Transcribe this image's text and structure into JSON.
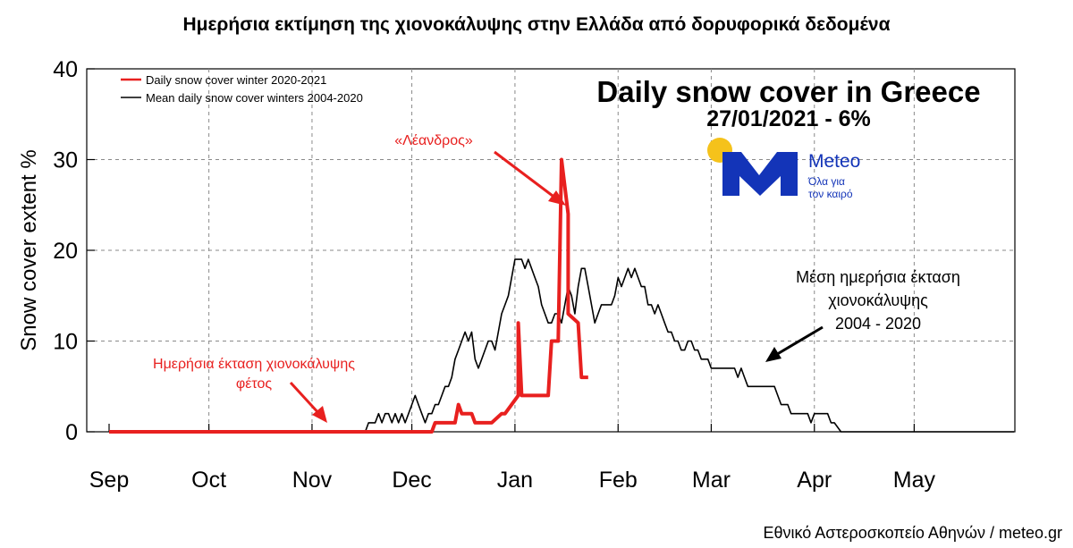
{
  "page_title": "Ημερήσια εκτίμηση της χιονοκάλυψης στην Ελλάδα από δορυφορικά δεδομένα",
  "credit": "Εθνικό Αστεροσκοπείο Αθηνών / meteo.gr",
  "colors": {
    "current": "#e8201f",
    "mean": "#000000",
    "logo_blue": "#1334b8",
    "logo_sun": "#f5c21b"
  },
  "logo": {
    "name": "Meteo",
    "tagline_1": "Όλα για",
    "tagline_2": "τον καιρό"
  },
  "annotations": {
    "storm": "«Λέανδρος»",
    "current_1": "Ημερήσια έκταση χιονοκάλυψης",
    "current_2": "φέτος",
    "mean_1": "Μέση ημερήσια έκταση",
    "mean_2": "χιονοκάλυψης",
    "mean_3": "2004 - 2020"
  },
  "chart_data": {
    "type": "line",
    "title": "Daily snow cover in Greece",
    "subtitle": "27/01/2021 - 6%",
    "ylabel": "Snow cover extent %",
    "xlabel": "",
    "x_unit": "days since 1 Sep",
    "xlim": [
      0,
      272
    ],
    "ylim": [
      0,
      40
    ],
    "x_ticks": [
      {
        "label": "Sep",
        "x": 0
      },
      {
        "label": "Oct",
        "x": 30
      },
      {
        "label": "Nov",
        "x": 61
      },
      {
        "label": "Dec",
        "x": 91
      },
      {
        "label": "Jan",
        "x": 122
      },
      {
        "label": "Feb",
        "x": 153
      },
      {
        "label": "Mar",
        "x": 181
      },
      {
        "label": "Apr",
        "x": 212
      },
      {
        "label": "May",
        "x": 242
      }
    ],
    "y_ticks": [
      0,
      10,
      20,
      30,
      40
    ],
    "grid": true,
    "legend_position": "top-left",
    "series": [
      {
        "name": "Daily snow cover winter 2020-2021",
        "color": "#e8201f",
        "points": [
          [
            0,
            0
          ],
          [
            97,
            0
          ],
          [
            98,
            1
          ],
          [
            104,
            1
          ],
          [
            105,
            3
          ],
          [
            106,
            2
          ],
          [
            107,
            2
          ],
          [
            108,
            2
          ],
          [
            109,
            2
          ],
          [
            110,
            1
          ],
          [
            115,
            1
          ],
          [
            118,
            2
          ],
          [
            119,
            2
          ],
          [
            123,
            4
          ],
          [
            123,
            12
          ],
          [
            124,
            4
          ],
          [
            132,
            4
          ],
          [
            133,
            10
          ],
          [
            135,
            10
          ],
          [
            136,
            30
          ],
          [
            138,
            24
          ],
          [
            138,
            13
          ],
          [
            141,
            12
          ],
          [
            142,
            6
          ],
          [
            144,
            6
          ]
        ]
      },
      {
        "name": "Mean daily snow cover winters 2004-2020",
        "color": "#000000",
        "points": [
          [
            0,
            0
          ],
          [
            77,
            0
          ],
          [
            78,
            1
          ],
          [
            80,
            1
          ],
          [
            81,
            2
          ],
          [
            82,
            1
          ],
          [
            83,
            2
          ],
          [
            84,
            2
          ],
          [
            85,
            1
          ],
          [
            86,
            2
          ],
          [
            87,
            1
          ],
          [
            88,
            2
          ],
          [
            89,
            1
          ],
          [
            90,
            2
          ],
          [
            91,
            3
          ],
          [
            92,
            4
          ],
          [
            93,
            3
          ],
          [
            94,
            2
          ],
          [
            95,
            1
          ],
          [
            96,
            2
          ],
          [
            97,
            2
          ],
          [
            98,
            3
          ],
          [
            99,
            3
          ],
          [
            100,
            4
          ],
          [
            101,
            5
          ],
          [
            102,
            5
          ],
          [
            103,
            6
          ],
          [
            104,
            8
          ],
          [
            105,
            9
          ],
          [
            106,
            10
          ],
          [
            107,
            11
          ],
          [
            108,
            10
          ],
          [
            109,
            11
          ],
          [
            110,
            8
          ],
          [
            111,
            7
          ],
          [
            112,
            8
          ],
          [
            113,
            9
          ],
          [
            114,
            10
          ],
          [
            115,
            10
          ],
          [
            116,
            9
          ],
          [
            117,
            11
          ],
          [
            118,
            13
          ],
          [
            119,
            14
          ],
          [
            120,
            15
          ],
          [
            121,
            17
          ],
          [
            122,
            19
          ],
          [
            123,
            19
          ],
          [
            124,
            19
          ],
          [
            125,
            18
          ],
          [
            126,
            19
          ],
          [
            127,
            18
          ],
          [
            128,
            17
          ],
          [
            129,
            16
          ],
          [
            130,
            14
          ],
          [
            131,
            13
          ],
          [
            132,
            12
          ],
          [
            133,
            12
          ],
          [
            134,
            13
          ],
          [
            135,
            13
          ],
          [
            136,
            12
          ],
          [
            137,
            14
          ],
          [
            138,
            16
          ],
          [
            139,
            15
          ],
          [
            140,
            13
          ],
          [
            141,
            16
          ],
          [
            142,
            18
          ],
          [
            143,
            18
          ],
          [
            144,
            16
          ],
          [
            145,
            14
          ],
          [
            146,
            12
          ],
          [
            147,
            13
          ],
          [
            148,
            14
          ],
          [
            149,
            14
          ],
          [
            150,
            14
          ],
          [
            151,
            14
          ],
          [
            152,
            15
          ],
          [
            153,
            17
          ],
          [
            154,
            16
          ],
          [
            155,
            17
          ],
          [
            156,
            18
          ],
          [
            157,
            17
          ],
          [
            158,
            18
          ],
          [
            159,
            17
          ],
          [
            160,
            16
          ],
          [
            161,
            16
          ],
          [
            162,
            14
          ],
          [
            163,
            14
          ],
          [
            164,
            13
          ],
          [
            165,
            14
          ],
          [
            166,
            13
          ],
          [
            167,
            12
          ],
          [
            168,
            11
          ],
          [
            169,
            11
          ],
          [
            170,
            10
          ],
          [
            171,
            10
          ],
          [
            172,
            9
          ],
          [
            173,
            9
          ],
          [
            174,
            10
          ],
          [
            175,
            10
          ],
          [
            176,
            9
          ],
          [
            177,
            9
          ],
          [
            178,
            8
          ],
          [
            179,
            8
          ],
          [
            180,
            8
          ],
          [
            181,
            7
          ],
          [
            188,
            7
          ],
          [
            189,
            6
          ],
          [
            190,
            7
          ],
          [
            191,
            6
          ],
          [
            192,
            5
          ],
          [
            200,
            5
          ],
          [
            201,
            4
          ],
          [
            202,
            3
          ],
          [
            204,
            3
          ],
          [
            205,
            2
          ],
          [
            210,
            2
          ],
          [
            211,
            1
          ],
          [
            212,
            2
          ],
          [
            216,
            2
          ],
          [
            217,
            1
          ],
          [
            218,
            1
          ],
          [
            220,
            0
          ],
          [
            272,
            0
          ]
        ]
      }
    ]
  }
}
